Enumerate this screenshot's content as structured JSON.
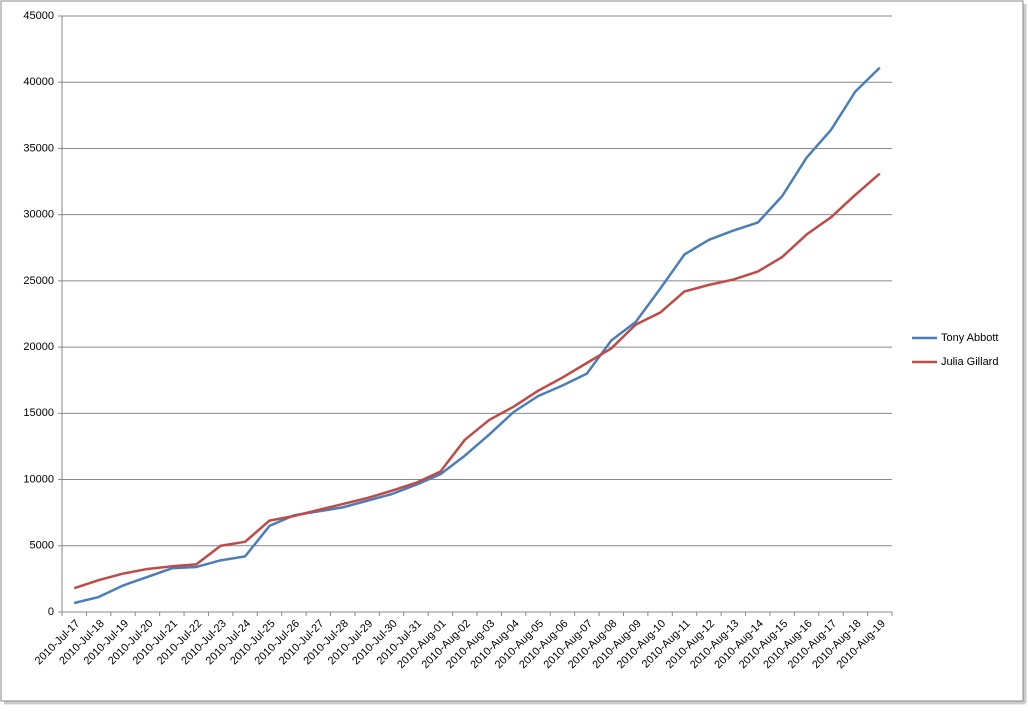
{
  "chart_data": {
    "type": "line",
    "categories": [
      "2010-Jul-17",
      "2010-Jul-18",
      "2010-Jul-19",
      "2010-Jul-20",
      "2010-Jul-21",
      "2010-Jul-22",
      "2010-Jul-23",
      "2010-Jul-24",
      "2010-Jul-25",
      "2010-Jul-26",
      "2010-Jul-27",
      "2010-Jul-28",
      "2010-Jul-29",
      "2010-Jul-30",
      "2010-Jul-31",
      "2010-Aug-01",
      "2010-Aug-02",
      "2010-Aug-03",
      "2010-Aug-04",
      "2010-Aug-05",
      "2010-Aug-06",
      "2010-Aug-07",
      "2010-Aug-08",
      "2010-Aug-09",
      "2010-Aug-10",
      "2010-Aug-11",
      "2010-Aug-12",
      "2010-Aug-13",
      "2010-Aug-14",
      "2010-Aug-15",
      "2010-Aug-16",
      "2010-Aug-17",
      "2010-Aug-18",
      "2010-Aug-19"
    ],
    "series": [
      {
        "name": "Tony Abbott",
        "color": "#4a7ebb",
        "values": [
          680,
          1130,
          2000,
          2650,
          3300,
          3400,
          3900,
          4200,
          6500,
          7300,
          7600,
          7900,
          8400,
          8900,
          9600,
          10400,
          11800,
          13400,
          15100,
          16300,
          17100,
          18000,
          20500,
          21900,
          24400,
          27000,
          28100,
          28800,
          29400,
          31400,
          34300,
          36400,
          39300,
          41100
        ]
      },
      {
        "name": "Julia Gillard",
        "color": "#be4b48",
        "values": [
          1800,
          2400,
          2900,
          3250,
          3450,
          3600,
          5000,
          5300,
          6900,
          7250,
          7700,
          8150,
          8600,
          9150,
          9750,
          10600,
          13000,
          14500,
          15500,
          16700,
          17700,
          18800,
          19900,
          21700,
          22600,
          24200,
          24700,
          25100,
          25700,
          26800,
          28500,
          29800,
          31500,
          33100
        ]
      }
    ],
    "ylim": [
      0,
      45000
    ],
    "yticks": [
      0,
      5000,
      10000,
      15000,
      20000,
      25000,
      30000,
      35000,
      40000,
      45000
    ],
    "grid": true,
    "legend": "right"
  }
}
